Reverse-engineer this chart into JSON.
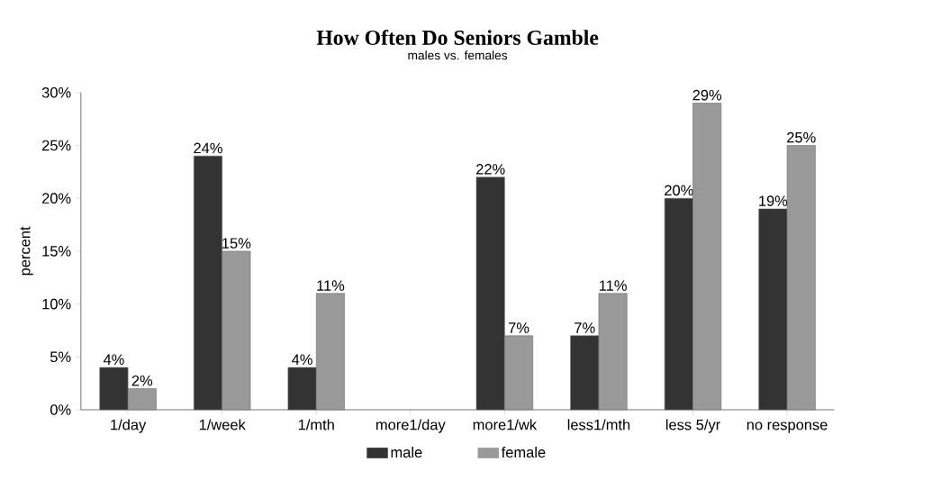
{
  "chart_data": {
    "type": "bar",
    "title": "How Often Do Seniors Gamble",
    "subtitle": "males vs. females",
    "ylabel": "percent",
    "categories": [
      "1/day",
      "1/week",
      "1/mth",
      "more1/day",
      "more1/wk",
      "less1/mth",
      "less 5/yr",
      "no response"
    ],
    "series": [
      {
        "name": "male",
        "color": "#333333",
        "values": [
          4,
          24,
          4,
          null,
          22,
          7,
          20,
          19
        ],
        "value_labels": [
          "4%",
          "24%",
          "4%",
          null,
          "22%",
          "7%",
          "20%",
          "19%"
        ]
      },
      {
        "name": "female",
        "color": "#999999",
        "values": [
          2,
          15,
          11,
          null,
          7,
          11,
          29,
          25
        ],
        "value_labels": [
          "2%",
          "15%",
          "11%",
          null,
          "7%",
          "11%",
          "29%",
          "25%"
        ]
      }
    ],
    "ylim": [
      0,
      30
    ],
    "yticks": [
      {
        "value": 0,
        "label": "0%"
      },
      {
        "value": 5,
        "label": "5%"
      },
      {
        "value": 10,
        "label": "10%"
      },
      {
        "value": 15,
        "label": "15%"
      },
      {
        "value": 20,
        "label": "20%"
      },
      {
        "value": 25,
        "label": "25%"
      },
      {
        "value": 30,
        "label": "30%"
      }
    ],
    "legend": "bottom",
    "grid": false
  }
}
